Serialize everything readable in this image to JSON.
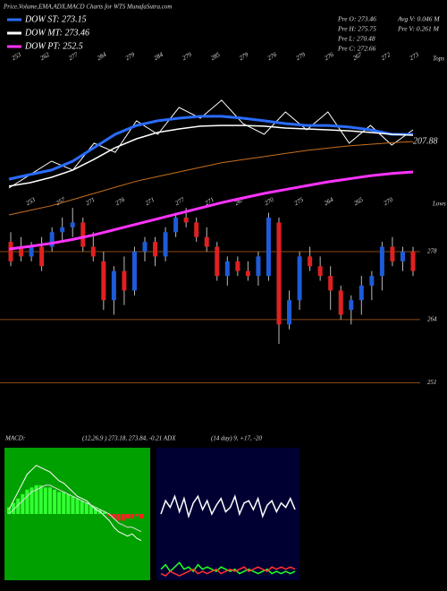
{
  "chart_data": [
    {
      "type": "candlestick",
      "title": "Price,Volume,EMA,ADX,MACD Charts for WTS MunafaSutra.com",
      "stats": [
        "Pre O: 273.46",
        "Pre H: 275.75",
        "Pre L: 270.48",
        "Pre C: 272.66",
        "Avg V: 0.046 M",
        "Pre V: 0.261 M"
      ],
      "open": [
        280,
        279,
        277,
        279,
        279,
        282,
        283,
        284,
        279,
        276,
        268,
        274,
        270,
        278,
        280,
        277,
        282,
        285,
        284,
        281,
        279,
        273,
        276,
        274,
        273,
        273,
        284,
        263,
        268,
        277,
        275,
        273,
        270,
        266,
        268,
        271,
        273,
        279,
        276,
        278
      ],
      "high": [
        282,
        281,
        280,
        281,
        283,
        285,
        287,
        285,
        282,
        278,
        275,
        277,
        279,
        281,
        281,
        283,
        286,
        287,
        285,
        283,
        280,
        277,
        277,
        276,
        278,
        286,
        285,
        270,
        278,
        279,
        277,
        275,
        271,
        269,
        273,
        274,
        280,
        281,
        279,
        279
      ],
      "low": [
        275,
        276,
        276,
        274,
        278,
        280,
        281,
        278,
        276,
        266,
        265,
        267,
        269,
        276,
        275,
        276,
        281,
        283,
        280,
        278,
        272,
        271,
        273,
        272,
        271,
        272,
        259,
        262,
        266,
        274,
        272,
        266,
        264,
        263,
        265,
        268,
        270,
        275,
        274,
        273
      ],
      "close": [
        276,
        277,
        279,
        275,
        282,
        283,
        284,
        279,
        277,
        268,
        274,
        270,
        278,
        280,
        277,
        282,
        285,
        284,
        281,
        279,
        273,
        276,
        274,
        273,
        277,
        285,
        263,
        268,
        277,
        275,
        273,
        270,
        265,
        268,
        271,
        273,
        279,
        276,
        278,
        274
      ],
      "up_color": "#1e5bd8",
      "down_color": "#e02020",
      "ylim": [
        245,
        287.4
      ],
      "yticks": [
        251,
        264,
        278
      ],
      "grid": true,
      "top_labels": [
        253,
        262,
        277,
        284,
        279,
        284,
        279,
        285,
        279,
        276,
        279,
        276,
        267,
        272,
        273
      ],
      "top_text": "Tops",
      "low_labels": [
        253,
        257,
        271,
        276,
        271,
        277,
        271,
        267,
        270,
        275,
        264,
        265,
        270
      ],
      "low_text": "Lows"
    },
    {
      "type": "line",
      "ylim": [
        180,
        320
      ],
      "series": [
        {
          "name": null,
          "color": "#ffffff",
          "width": 1,
          "values": [
            232.5,
            241.3,
            250,
            244.2,
            261.7,
            255.8,
            276.3,
            267.5,
            285,
            278,
            289.7,
            274.5,
            267.5,
            282.1,
            270.4,
            282.1,
            261.7,
            273.3,
            260.5,
            270.4
          ]
        },
        {
          "name": null,
          "color": "#c87020",
          "width": 1,
          "values": [
            215,
            218,
            221,
            225,
            229,
            233,
            237,
            240,
            243,
            246,
            249,
            251,
            253,
            255,
            257,
            258.5,
            260,
            261,
            262,
            262.8
          ],
          "end_label": 207.88
        },
        {
          "name": "DOW ST: 273.15",
          "color": "#2a6cff",
          "width": 3,
          "values": [
            238.3,
            241.3,
            244.2,
            250,
            258.8,
            267.5,
            273.3,
            276.3,
            278,
            279.2,
            279.2,
            278,
            276.3,
            274.5,
            273.3,
            273.3,
            272.2,
            270.4,
            267.5,
            267.5
          ]
        },
        {
          "name": "DOW MT: 273.46",
          "color": "#ffffff",
          "width": 1.5,
          "values": [
            233.7,
            236,
            239.5,
            244.2,
            251.2,
            258.8,
            264.6,
            268.7,
            271,
            272.8,
            273.3,
            273.3,
            272.8,
            271.6,
            271,
            270.4,
            269.8,
            268.7,
            267.5,
            266.9
          ]
        },
        {
          "name": "DOW PT: 252.5",
          "color": "#ff33ff",
          "width": 3,
          "values": [
            192.8,
            194.5,
            196.5,
            199,
            202,
            205.5,
            209,
            212.5,
            216,
            219.5,
            223,
            226,
            229,
            231.5,
            234,
            236.5,
            238.5,
            240.5,
            242,
            243
          ]
        }
      ]
    },
    {
      "type": "macd",
      "title": "MACD:",
      "subtitle": "(12,26,9 ) 273.18, 273.84, -0.21 ADX",
      "background": "#00a000",
      "ylim": [
        -3,
        3
      ],
      "histogram": [
        0.3,
        0.5,
        0.7,
        0.9,
        1.1,
        1.2,
        1.3,
        1.3,
        1.2,
        1.2,
        1.1,
        1.0,
        1.0,
        0.9,
        0.8,
        0.7,
        0.6,
        0.5,
        0.4,
        0.3,
        0.2,
        0.1,
        -0.1,
        -0.2,
        -0.3,
        -0.3,
        -0.2,
        -0.2,
        -0.1,
        -0.2
      ],
      "up_color": "#33ff33",
      "down_color": "#ff2020",
      "series": [
        {
          "name": null,
          "color": "#ffffff",
          "values": [
            0.2,
            0.6,
            1.0,
            1.4,
            1.8,
            2.0,
            2.2,
            2.1,
            2.0,
            1.9,
            1.7,
            1.5,
            1.4,
            1.2,
            1.0,
            0.8,
            0.7,
            0.6,
            0.4,
            0.2,
            0.1,
            -0.1,
            -0.3,
            -0.6,
            -0.8,
            -0.9,
            -1.0,
            -0.9,
            -1.1,
            -1.2
          ]
        },
        {
          "name": null,
          "color": "#dddddd",
          "values": [
            0,
            0.2,
            0.4,
            0.6,
            0.8,
            1.0,
            1.1,
            1.2,
            1.3,
            1.3,
            1.2,
            1.1,
            1.0,
            0.9,
            0.8,
            0.7,
            0.6,
            0.5,
            0.4,
            0.3,
            0.2,
            0.1,
            0,
            -0.2,
            -0.4,
            -0.5,
            -0.6,
            -0.6,
            -0.7,
            -0.8
          ]
        }
      ]
    },
    {
      "type": "adx",
      "title": "(14 day) 9, +17, -20",
      "background": "#000033",
      "ylim": [
        0,
        60
      ],
      "series": [
        {
          "name": null,
          "color": "#ffffff",
          "values": [
            30,
            36,
            33,
            38,
            31,
            37,
            29,
            35,
            38,
            32,
            36,
            30,
            34,
            37,
            31,
            33,
            38,
            30,
            35,
            36,
            32,
            37,
            29,
            34,
            36,
            31,
            35,
            33,
            37,
            32
          ]
        },
        {
          "name": null,
          "color": "#22ff22",
          "values": [
            5,
            7,
            4,
            6,
            8,
            5,
            6,
            4,
            7,
            5,
            6,
            5,
            4,
            6,
            5,
            4,
            5,
            3,
            4,
            5,
            4,
            3,
            4,
            5,
            3,
            4,
            3,
            4,
            3,
            4
          ]
        },
        {
          "name": null,
          "color": "#ff3030",
          "values": [
            3,
            2,
            4,
            3,
            2,
            3,
            4,
            5,
            3,
            4,
            3,
            4,
            5,
            3,
            4,
            5,
            4,
            5,
            6,
            4,
            5,
            6,
            5,
            4,
            6,
            5,
            6,
            5,
            6,
            5
          ]
        }
      ]
    }
  ]
}
